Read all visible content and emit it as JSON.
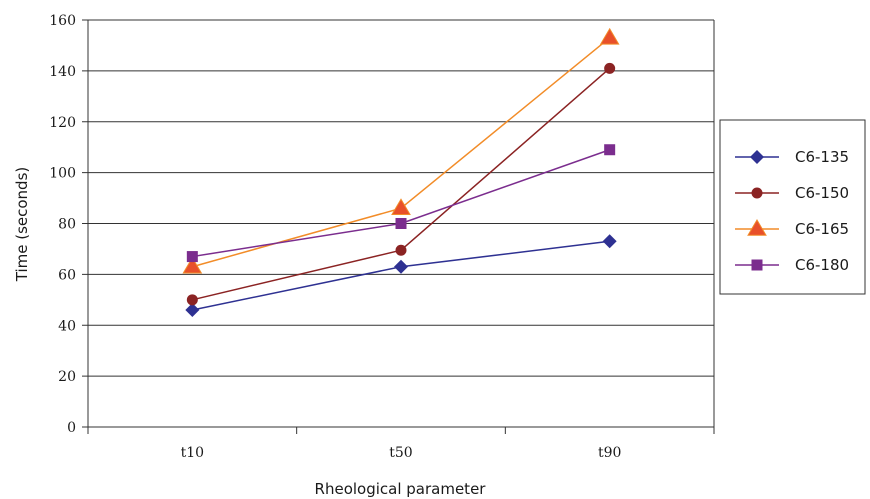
{
  "chart_data": {
    "type": "line",
    "categories": [
      "t10",
      "t50",
      "t90"
    ],
    "xlabel": "Rheological parameter",
    "ylabel": "Time (seconds)",
    "ylim": [
      0,
      160
    ],
    "yticks": [
      0,
      20,
      40,
      60,
      80,
      100,
      120,
      140,
      160
    ],
    "grid": true,
    "legend_position": "right",
    "series": [
      {
        "name": "C6-135",
        "values": [
          46,
          63,
          73
        ],
        "color": "#2e3192",
        "marker": "diamond"
      },
      {
        "name": "C6-150",
        "values": [
          50,
          69.5,
          141
        ],
        "color": "#8b2323",
        "marker": "circle"
      },
      {
        "name": "C6-165",
        "values": [
          63,
          86,
          153
        ],
        "color": "#f28c28",
        "marker": "triangle"
      },
      {
        "name": "C6-180",
        "values": [
          67,
          80,
          109
        ],
        "color": "#7b2d8e",
        "marker": "square"
      }
    ]
  }
}
